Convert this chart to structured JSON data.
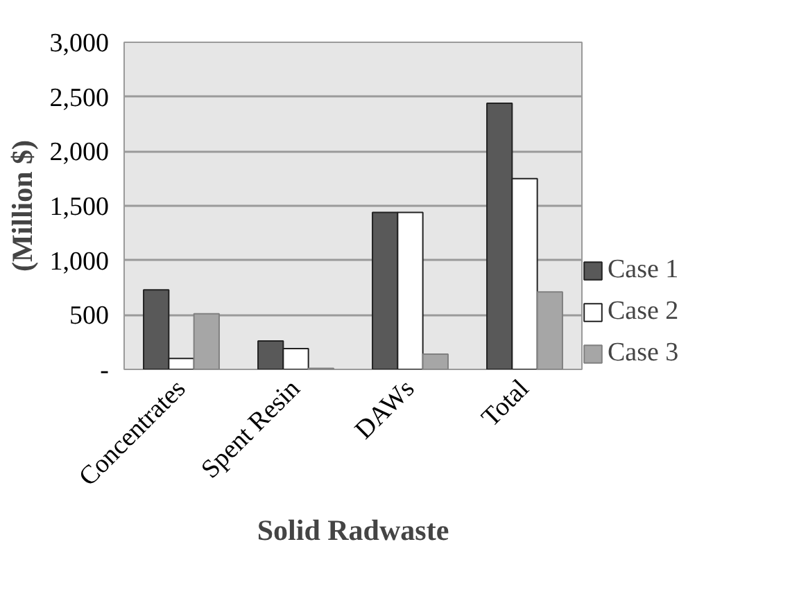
{
  "chart_data": {
    "type": "bar",
    "xlabel": "Solid Radwaste",
    "ylabel": "(Million $)",
    "categories": [
      "Concentrates",
      "Spent Resin",
      "DAWs",
      "Total"
    ],
    "series": [
      {
        "name": "Case 1",
        "color": "#595959",
        "values": [
          730,
          260,
          1440,
          2440
        ]
      },
      {
        "name": "Case 2",
        "color": "#ffffff",
        "values": [
          100,
          190,
          1440,
          1750
        ]
      },
      {
        "name": "Case 3",
        "color": "#a6a6a6",
        "values": [
          510,
          10,
          140,
          710
        ]
      }
    ],
    "ylim": [
      0,
      3000
    ],
    "yticks": [
      {
        "value": 0,
        "label": "-"
      },
      {
        "value": 500,
        "label": "500"
      },
      {
        "value": 1000,
        "label": "1,000"
      },
      {
        "value": 1500,
        "label": "1,500"
      },
      {
        "value": 2000,
        "label": "2,000"
      },
      {
        "value": 2500,
        "label": "2,500"
      },
      {
        "value": 3000,
        "label": "3,000"
      }
    ],
    "grid": "y",
    "legend": "right"
  }
}
